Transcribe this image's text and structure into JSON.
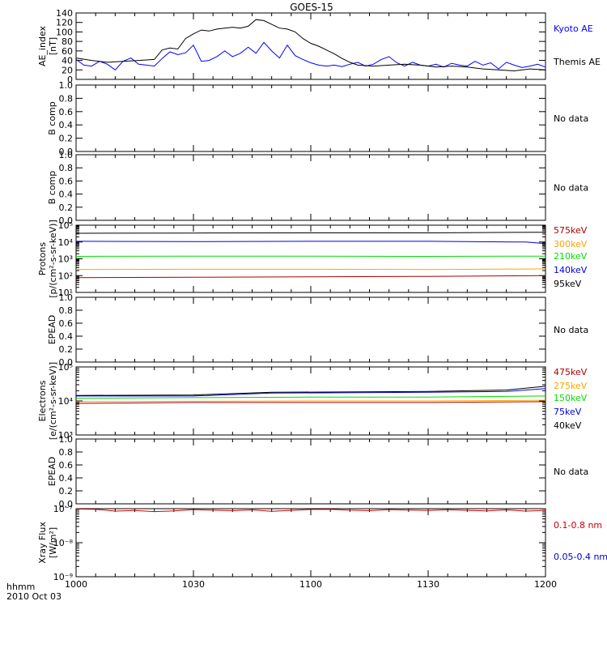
{
  "title": "GOES-15",
  "time_axis": {
    "ticks": [
      "1000",
      "1030",
      "1100",
      "1130",
      "1200"
    ],
    "label_line1": "hhmm",
    "label_line2": "2010 Oct 03"
  },
  "chart_data": [
    {
      "type": "line",
      "ylabel": [
        "AE_index",
        "[nT]"
      ],
      "ylim": [
        0,
        140
      ],
      "yticks": [
        "0",
        "20",
        "40",
        "60",
        "80",
        "100",
        "120",
        "140"
      ],
      "x_range_minutes": [
        0,
        120
      ],
      "series": [
        {
          "name": "Kyoto AE",
          "color": "#0000ff",
          "x": [
            0,
            2,
            4,
            6,
            8,
            10,
            12,
            14,
            16,
            18,
            20,
            22,
            24,
            26,
            28,
            30,
            32,
            34,
            36,
            38,
            40,
            42,
            44,
            46,
            48,
            50,
            52,
            54,
            56,
            58,
            60,
            62,
            64,
            66,
            68,
            70,
            72,
            74,
            76,
            78,
            80,
            82,
            84,
            86,
            88,
            90,
            92,
            94,
            96,
            98,
            100,
            102,
            104,
            106,
            108,
            110,
            112,
            114,
            116,
            118,
            120
          ],
          "y": [
            42,
            30,
            28,
            38,
            32,
            20,
            38,
            45,
            32,
            30,
            28,
            44,
            58,
            52,
            56,
            72,
            38,
            40,
            48,
            60,
            48,
            55,
            68,
            55,
            78,
            60,
            45,
            72,
            50,
            42,
            35,
            30,
            28,
            30,
            27,
            32,
            36,
            28,
            32,
            42,
            48,
            35,
            28,
            36,
            30,
            28,
            32,
            26,
            34,
            30,
            28,
            38,
            30,
            35,
            22,
            36,
            30,
            25,
            28,
            32,
            26
          ]
        },
        {
          "name": "Themis AE",
          "color": "#000000",
          "x": [
            0,
            4,
            8,
            12,
            16,
            20,
            22,
            24,
            26,
            28,
            30,
            32,
            34,
            36,
            38,
            40,
            42,
            44,
            46,
            48,
            50,
            52,
            54,
            56,
            58,
            60,
            62,
            64,
            66,
            68,
            70,
            72,
            76,
            80,
            84,
            88,
            92,
            96,
            100,
            104,
            108,
            112,
            116,
            120
          ],
          "y": [
            45,
            40,
            36,
            38,
            40,
            42,
            62,
            66,
            64,
            86,
            96,
            104,
            102,
            106,
            108,
            110,
            108,
            112,
            126,
            124,
            116,
            108,
            106,
            100,
            86,
            76,
            70,
            62,
            54,
            44,
            36,
            30,
            28,
            30,
            32,
            30,
            26,
            28,
            26,
            22,
            20,
            18,
            22,
            20
          ]
        }
      ]
    },
    {
      "type": "line",
      "ylabel": [
        "B comp"
      ],
      "ylim": [
        0,
        1
      ],
      "yticks": [
        "0.0",
        "0.2",
        "0.4",
        "0.6",
        "0.8",
        "1.0"
      ],
      "status_label": "No data",
      "series": []
    },
    {
      "type": "line",
      "ylabel": [
        "B comp"
      ],
      "ylim": [
        0,
        1
      ],
      "yticks": [
        "0.0",
        "0.2",
        "0.4",
        "0.6",
        "0.8",
        "1.0"
      ],
      "status_label": "No data",
      "series": []
    },
    {
      "type": "line",
      "log_scale": true,
      "ylabel": [
        "Protons",
        "[p/(cm²-s-sr-keV)]"
      ],
      "ylim": [
        10,
        100000
      ],
      "yticks": [
        "10¹",
        "10²",
        "10³",
        "10⁴",
        "10⁵"
      ],
      "x_range_minutes": [
        0,
        120
      ],
      "series": [
        {
          "name": "575keV",
          "color": "#aa0000",
          "x": [
            0,
            30,
            60,
            90,
            120
          ],
          "y": [
            75,
            80,
            85,
            90,
            100
          ]
        },
        {
          "name": "300keV",
          "color": "#ffa500",
          "x": [
            0,
            30,
            60,
            90,
            120
          ],
          "y": [
            230,
            240,
            240,
            230,
            250
          ]
        },
        {
          "name": "210keV",
          "color": "#00dd00",
          "x": [
            0,
            30,
            60,
            90,
            120
          ],
          "y": [
            1400,
            1450,
            1420,
            1400,
            1450
          ]
        },
        {
          "name": "140keV",
          "color": "#0000dd",
          "x": [
            0,
            30,
            60,
            90,
            115,
            120
          ],
          "y": [
            11000,
            10500,
            11000,
            11000,
            10000,
            8000
          ]
        },
        {
          "name": "95keV",
          "color": "#000000",
          "x": [
            0,
            30,
            60,
            90,
            120
          ],
          "y": [
            33000,
            34000,
            35000,
            35000,
            38000
          ]
        }
      ]
    },
    {
      "type": "line",
      "ylabel": [
        "EPEAD"
      ],
      "ylim": [
        0,
        1
      ],
      "yticks": [
        "0.0",
        "0.2",
        "0.4",
        "0.6",
        "0.8",
        "1.0"
      ],
      "status_label": "No data",
      "series": []
    },
    {
      "type": "line",
      "log_scale": true,
      "ylabel": [
        "Electrons",
        "[e/(cm²-s-sr-keV)]"
      ],
      "ylim": [
        1000,
        100000
      ],
      "yticks": [
        "10³",
        "10⁴",
        "10⁵"
      ],
      "x_range_minutes": [
        0,
        120
      ],
      "series": [
        {
          "name": "475keV",
          "color": "#aa0000",
          "x": [
            0,
            30,
            60,
            90,
            120
          ],
          "y": [
            8500,
            9000,
            9000,
            9000,
            9500
          ]
        },
        {
          "name": "275keV",
          "color": "#ffa500",
          "x": [
            0,
            30,
            60,
            90,
            120
          ],
          "y": [
            9500,
            9800,
            10000,
            10000,
            10500
          ]
        },
        {
          "name": "150keV",
          "color": "#00dd00",
          "x": [
            0,
            30,
            60,
            90,
            120
          ],
          "y": [
            12000,
            12500,
            13000,
            13000,
            14000
          ]
        },
        {
          "name": "75keV",
          "color": "#0000dd",
          "x": [
            0,
            30,
            50,
            90,
            110,
            120
          ],
          "y": [
            14000,
            14000,
            17000,
            18000,
            19000,
            23000
          ]
        },
        {
          "name": "40keV",
          "color": "#000000",
          "x": [
            0,
            30,
            50,
            90,
            110,
            120
          ],
          "y": [
            14500,
            15000,
            18000,
            19000,
            21000,
            27000
          ]
        }
      ]
    },
    {
      "type": "line",
      "ylabel": [
        "EPEAD"
      ],
      "ylim": [
        0,
        1
      ],
      "yticks": [
        "0.0",
        "0.2",
        "0.4",
        "0.6",
        "0.8",
        "1.0"
      ],
      "status_label": "No data",
      "series": []
    },
    {
      "type": "line",
      "log_scale": true,
      "ylabel": [
        "Xray Flux",
        "[W/m²]"
      ],
      "ylim": [
        1e-09,
        1e-07
      ],
      "yticks": [
        "10⁻⁹",
        "10⁻⁸",
        "10⁻⁷"
      ],
      "x_range_minutes": [
        0,
        120
      ],
      "series": [
        {
          "name": "0.1-0.8 nm",
          "color": "#cc0000",
          "x": [
            0,
            5,
            10,
            15,
            20,
            25,
            30,
            35,
            40,
            45,
            50,
            55,
            60,
            65,
            70,
            75,
            80,
            85,
            90,
            95,
            100,
            105,
            110,
            115,
            120
          ],
          "y": [
            9.8e-08,
            9.6e-08,
            8.5e-08,
            8.8e-08,
            8.2e-08,
            8.6e-08,
            9.4e-08,
            9e-08,
            8.7e-08,
            9.2e-08,
            8.4e-08,
            8.9e-08,
            9.5e-08,
            9.6e-08,
            9e-08,
            8.7e-08,
            9.4e-08,
            9.1e-08,
            8.8e-08,
            9.3e-08,
            8.9e-08,
            8.6e-08,
            9.2e-08,
            8.5e-08,
            8.9e-08
          ]
        },
        {
          "name": "0.05-0.4 nm",
          "color": "#0000cc",
          "x": [],
          "y": []
        }
      ]
    }
  ]
}
